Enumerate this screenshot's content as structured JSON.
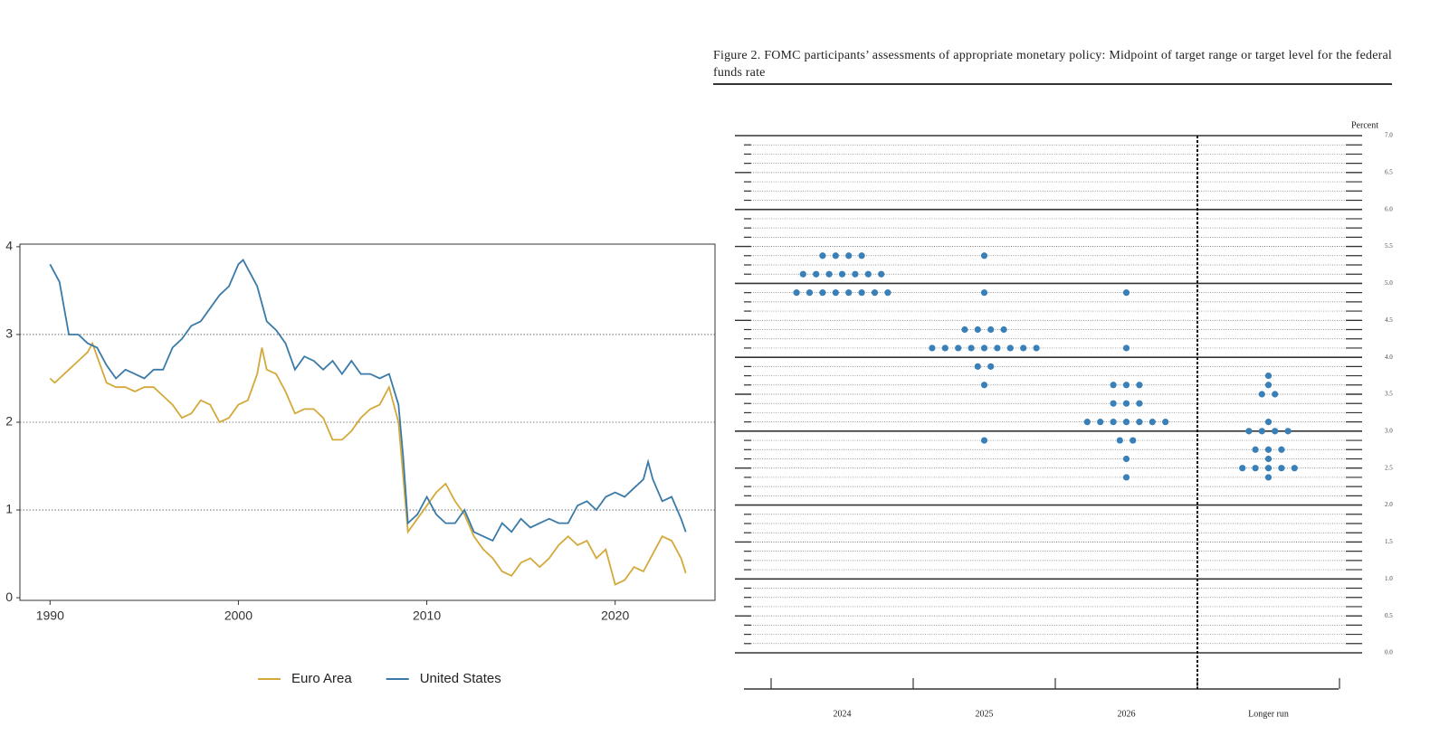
{
  "chart_data": [
    {
      "type": "line",
      "series": [
        {
          "name": "Euro Area",
          "color": "#d4a93a",
          "x": [
            1990,
            1990.25,
            1990.5,
            1991,
            1991.5,
            1992,
            1992.25,
            1992.5,
            1993,
            1993.5,
            1994,
            1994.5,
            1995,
            1995.5,
            1996,
            1996.5,
            1997,
            1997.5,
            1998,
            1998.5,
            1999,
            1999.5,
            2000,
            2000.5,
            2001,
            2001.25,
            2001.5,
            2002,
            2002.5,
            2003,
            2003.5,
            2004,
            2004.5,
            2005,
            2005.5,
            2006,
            2006.5,
            2007,
            2007.5,
            2008,
            2008.5,
            2009,
            2009.5,
            2010,
            2010.5,
            2011,
            2011.5,
            2012,
            2012.5,
            2013,
            2013.5,
            2014,
            2014.5,
            2015,
            2015.5,
            2016,
            2016.5,
            2017,
            2017.5,
            2018,
            2018.5,
            2019,
            2019.5,
            2020,
            2020.5,
            2021,
            2021.5,
            2022,
            2022.5,
            2023,
            2023.5,
            2023.75
          ],
          "values": [
            2.5,
            2.45,
            2.5,
            2.6,
            2.7,
            2.8,
            2.9,
            2.75,
            2.45,
            2.4,
            2.4,
            2.35,
            2.4,
            2.4,
            2.3,
            2.2,
            2.05,
            2.1,
            2.25,
            2.2,
            2.0,
            2.05,
            2.2,
            2.25,
            2.55,
            2.85,
            2.6,
            2.55,
            2.35,
            2.1,
            2.15,
            2.15,
            2.05,
            1.8,
            1.8,
            1.9,
            2.05,
            2.15,
            2.2,
            2.4,
            2.0,
            0.75,
            0.9,
            1.05,
            1.2,
            1.3,
            1.1,
            0.95,
            0.7,
            0.55,
            0.45,
            0.3,
            0.25,
            0.4,
            0.45,
            0.35,
            0.45,
            0.6,
            0.7,
            0.6,
            0.65,
            0.45,
            0.55,
            0.15,
            0.2,
            0.35,
            0.3,
            0.5,
            0.7,
            0.65,
            0.45,
            0.28
          ]
        },
        {
          "name": "United States",
          "color": "#3a7aa8",
          "x": [
            1990,
            1990.5,
            1991,
            1991.5,
            1992,
            1992.5,
            1993,
            1993.5,
            1994,
            1994.5,
            1995,
            1995.5,
            1996,
            1996.5,
            1997,
            1997.5,
            1998,
            1998.5,
            1999,
            1999.5,
            2000,
            2000.25,
            2000.5,
            2001,
            2001.5,
            2002,
            2002.5,
            2003,
            2003.5,
            2004,
            2004.5,
            2005,
            2005.5,
            2006,
            2006.5,
            2007,
            2007.5,
            2008,
            2008.5,
            2008.75,
            2009,
            2009.5,
            2010,
            2010.5,
            2011,
            2011.5,
            2012,
            2012.5,
            2013,
            2013.5,
            2014,
            2014.5,
            2015,
            2015.5,
            2016,
            2016.5,
            2017,
            2017.5,
            2018,
            2018.5,
            2019,
            2019.5,
            2020,
            2020.5,
            2021,
            2021.5,
            2021.75,
            2022,
            2022.5,
            2023,
            2023.5,
            2023.75
          ],
          "values": [
            3.8,
            3.6,
            3.0,
            3.0,
            2.9,
            2.85,
            2.65,
            2.5,
            2.6,
            2.55,
            2.5,
            2.6,
            2.6,
            2.85,
            2.95,
            3.1,
            3.15,
            3.3,
            3.45,
            3.55,
            3.8,
            3.85,
            3.75,
            3.55,
            3.15,
            3.05,
            2.9,
            2.6,
            2.75,
            2.7,
            2.6,
            2.7,
            2.55,
            2.7,
            2.55,
            2.55,
            2.5,
            2.55,
            2.2,
            1.6,
            0.85,
            0.95,
            1.15,
            0.95,
            0.85,
            0.85,
            1.0,
            0.75,
            0.7,
            0.65,
            0.85,
            0.75,
            0.9,
            0.8,
            0.85,
            0.9,
            0.85,
            0.85,
            1.05,
            1.1,
            1.0,
            1.15,
            1.2,
            1.15,
            1.25,
            1.35,
            1.55,
            1.35,
            1.1,
            1.15,
            0.9,
            0.75
          ]
        }
      ],
      "xlim": [
        1988.4,
        2025.3
      ],
      "xticks": [
        1990,
        2000,
        2010,
        2020
      ],
      "ylim": [
        -0.03,
        4.03
      ],
      "yticks": [
        0,
        1,
        2,
        3,
        4
      ],
      "grid": true,
      "legend": "bottom"
    },
    {
      "type": "dot",
      "title": "Figure 2.  FOMC participants’ assessments of appropriate monetary policy:  Midpoint of target range or target level for the federal funds rate",
      "ylabel": "Percent",
      "categories": [
        "2024",
        "2025",
        "2026",
        "Longer run"
      ],
      "values": [
        [
          5.375,
          5.375,
          5.375,
          5.375,
          5.125,
          5.125,
          5.125,
          5.125,
          5.125,
          5.125,
          5.125,
          4.875,
          4.875,
          4.875,
          4.875,
          4.875,
          4.875,
          4.875,
          4.875
        ],
        [
          5.375,
          4.875,
          4.375,
          4.375,
          4.375,
          4.375,
          4.125,
          4.125,
          4.125,
          4.125,
          4.125,
          4.125,
          4.125,
          4.125,
          4.125,
          3.875,
          3.875,
          3.625,
          2.875
        ],
        [
          4.875,
          4.125,
          3.625,
          3.625,
          3.625,
          3.375,
          3.375,
          3.375,
          3.125,
          3.125,
          3.125,
          3.125,
          3.125,
          3.125,
          3.125,
          2.875,
          2.875,
          2.625,
          2.375
        ],
        [
          3.75,
          3.625,
          3.5,
          3.5,
          3.125,
          3.0,
          3.0,
          3.0,
          3.0,
          2.75,
          2.75,
          2.75,
          2.625,
          2.5,
          2.5,
          2.5,
          2.5,
          2.5,
          2.375
        ]
      ],
      "color": "#3a80b8",
      "ylim": [
        0,
        7
      ],
      "yticks": [
        {
          "value": 0,
          "label": "0.0"
        },
        {
          "value": 0.5,
          "label": "0.5"
        },
        {
          "value": 1,
          "label": "1.0"
        },
        {
          "value": 1.5,
          "label": "1.5"
        },
        {
          "value": 2,
          "label": "2.0"
        },
        {
          "value": 2.5,
          "label": "2.5"
        },
        {
          "value": 3,
          "label": "3.0"
        },
        {
          "value": 3.5,
          "label": "3.5"
        },
        {
          "value": 4,
          "label": "4.0"
        },
        {
          "value": 4.5,
          "label": "4.5"
        },
        {
          "value": 5,
          "label": "5.0"
        },
        {
          "value": 5.5,
          "label": "5.5"
        },
        {
          "value": 6,
          "label": "6.0"
        },
        {
          "value": 6.5,
          "label": "6.5"
        },
        {
          "value": 7,
          "label": "7.0"
        }
      ],
      "grid": true
    }
  ]
}
